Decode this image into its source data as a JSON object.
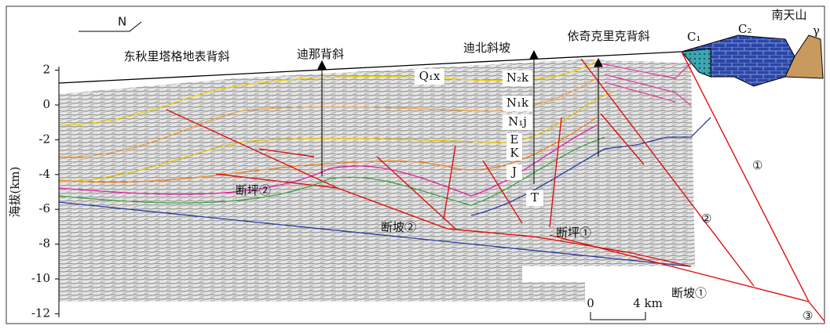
{
  "header": {
    "north": "N"
  },
  "structures": [
    "东秋里塔格地表背斜",
    "迪那背斜",
    "迪北斜坡",
    "依奇克里克背斜",
    "南天山"
  ],
  "strata": [
    "C₁",
    "C₂",
    "γ",
    "Q₁x",
    "N₂k",
    "N₁k",
    "N₁j",
    "E",
    "K",
    "J",
    "T"
  ],
  "faults": [
    "断坪②",
    "断坡②",
    "断坪①",
    "断坡①",
    "①",
    "②",
    "③"
  ],
  "yaxis": {
    "label": "海拔(km)",
    "ticks": [
      2,
      0,
      -2,
      -4,
      -6,
      -8,
      -10,
      -12
    ]
  },
  "scale": {
    "start": "0",
    "end": "4 km"
  }
}
